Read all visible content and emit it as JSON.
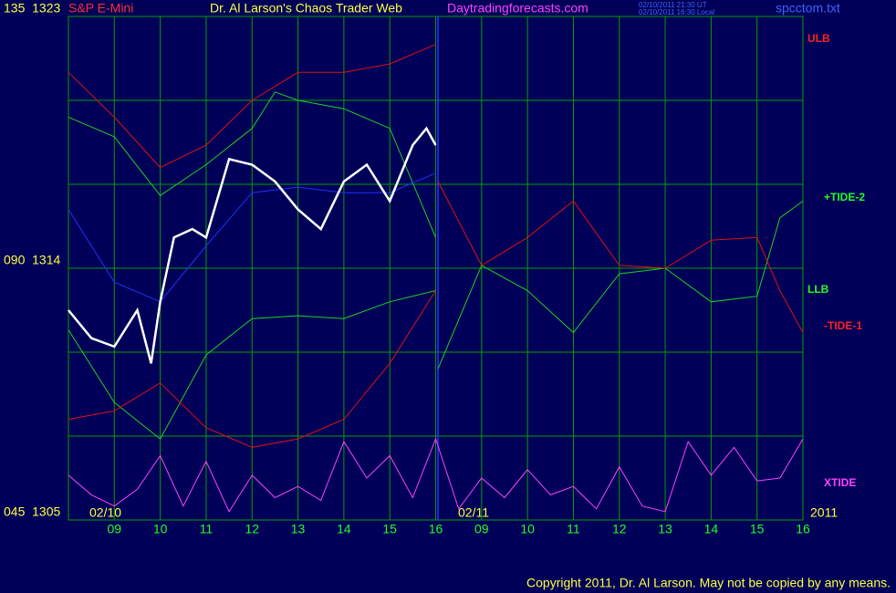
{
  "chart_data": {
    "type": "line",
    "symbol": "S&P E-Mini",
    "title": "Dr. Al Larson's Chaos Trader Web",
    "site": "Daytradingforecasts.com",
    "timestamp_ut": "02/10/2011 21:30 UT",
    "timestamp_local": "02/10/2011 16:30 Local",
    "file": "spcctom.txt",
    "copyright": "Copyright 2011, Dr. Al Larson. May not be copied by any means.",
    "date_labels": [
      "02/10",
      "02/11",
      "2011"
    ],
    "xlim": [
      0,
      16
    ],
    "xticks": [
      {
        "value": 1,
        "label": "09"
      },
      {
        "value": 2,
        "label": "10"
      },
      {
        "value": 3,
        "label": "11"
      },
      {
        "value": 4,
        "label": "12"
      },
      {
        "value": 5,
        "label": "13"
      },
      {
        "value": 6,
        "label": "14"
      },
      {
        "value": 7,
        "label": "15"
      },
      {
        "value": 8,
        "label": "16"
      },
      {
        "value": 9,
        "label": "09"
      },
      {
        "value": 10,
        "label": "10"
      },
      {
        "value": 11,
        "label": "11"
      },
      {
        "value": 12,
        "label": "12"
      },
      {
        "value": 13,
        "label": "13"
      },
      {
        "value": 14,
        "label": "14"
      },
      {
        "value": 15,
        "label": "15"
      },
      {
        "value": 16,
        "label": "16"
      }
    ],
    "ylim": [
      1305,
      1323
    ],
    "yticks": [
      {
        "value": 1323,
        "label": "135  1323"
      },
      {
        "value": 1314,
        "label": "090  1314"
      },
      {
        "value": 1305,
        "label": "045  1305"
      }
    ],
    "ygrid": [
      1305,
      1308,
      1311,
      1314,
      1317,
      1320,
      1323
    ],
    "now_x": 8.05,
    "annotations": [
      {
        "text": "ULB",
        "color": "#ff2020"
      },
      {
        "text": "+TIDE-2",
        "color": "#20ff20"
      },
      {
        "text": "LLB",
        "color": "#20ff20"
      },
      {
        "text": "-TIDE-1",
        "color": "#ff2020"
      },
      {
        "text": "XTIDE",
        "color": "#ff40ff"
      }
    ],
    "series": [
      {
        "color": "#e01010",
        "x": [
          0,
          1,
          2,
          3,
          4,
          5,
          6,
          7,
          8
        ],
        "values": [
          1321,
          1319.4,
          1317.6,
          1318.4,
          1320,
          1321,
          1321,
          1321.3,
          1322
        ]
      },
      {
        "color": "#20d020",
        "x": [
          0,
          1,
          2,
          3,
          4,
          4.5,
          5,
          6,
          7,
          8
        ],
        "values": [
          1319.4,
          1318.7,
          1316.6,
          1317.7,
          1319,
          1320.3,
          1320,
          1319.7,
          1319,
          1315.1
        ]
      },
      {
        "color": "#20d020",
        "x": [
          0,
          1,
          2,
          3,
          4,
          5,
          6,
          7,
          8
        ],
        "values": [
          1311.8,
          1309.2,
          1307.9,
          1310.9,
          1312.2,
          1312.3,
          1312.2,
          1312.8,
          1313.2
        ]
      },
      {
        "color": "#e01010",
        "x": [
          0,
          1,
          2,
          3,
          4,
          5,
          6,
          7,
          8
        ],
        "values": [
          1308.6,
          1308.9,
          1309.9,
          1308.3,
          1307.6,
          1307.9,
          1308.6,
          1310.6,
          1313.2
        ]
      },
      {
        "color": "#2030ff",
        "x": [
          0,
          1,
          2,
          3,
          4,
          5,
          6,
          7,
          8
        ],
        "values": [
          1316.1,
          1313.5,
          1312.8,
          1314.8,
          1316.7,
          1316.9,
          1316.7,
          1316.7,
          1317.4
        ]
      },
      {
        "color": "#20d020",
        "x": [
          8.05,
          9,
          10,
          11,
          12,
          13,
          14,
          15,
          15.5,
          16
        ],
        "values": [
          1310.4,
          1314.1,
          1313.2,
          1311.7,
          1313.8,
          1314,
          1312.8,
          1313,
          1315.8,
          1316.4
        ]
      },
      {
        "color": "#e01010",
        "x": [
          8.05,
          9,
          10,
          11,
          12,
          13,
          14,
          15,
          15.5,
          16
        ],
        "values": [
          1317.1,
          1314.1,
          1315.1,
          1316.4,
          1314.1,
          1314,
          1315,
          1315.1,
          1313.2,
          1311.7
        ]
      },
      {
        "color": "#ffffff",
        "x": [
          0,
          0.5,
          1,
          1.5,
          1.8,
          2,
          2.3,
          2.7,
          3,
          3.5,
          4,
          4.5,
          5,
          5.5,
          6,
          6.5,
          7,
          7.5,
          7.8,
          8
        ],
        "values": [
          1312.5,
          1311.5,
          1311.2,
          1312.5,
          1310.6,
          1312.8,
          1315.1,
          1315.4,
          1315.1,
          1317.9,
          1317.7,
          1317.1,
          1316.1,
          1315.4,
          1317.1,
          1317.7,
          1316.4,
          1318.4,
          1319,
          1318.4
        ]
      },
      {
        "color": "#ff40ff",
        "x": [
          0,
          0.5,
          1,
          1.5,
          2,
          2.5,
          3,
          3.5,
          4,
          4.5,
          5,
          5.5,
          6,
          6.5,
          7,
          7.5,
          8,
          8.5,
          9,
          9.5,
          10,
          10.5,
          11,
          11.5,
          12,
          12.5,
          13,
          13.5,
          14,
          14.5,
          15,
          15.5,
          16
        ],
        "values": [
          1306.6,
          1305.9,
          1305.5,
          1306.1,
          1307.3,
          1305.5,
          1307.1,
          1305.3,
          1306.6,
          1305.8,
          1306.2,
          1305.7,
          1307.8,
          1306.5,
          1307.3,
          1305.8,
          1307.9,
          1305.4,
          1306.5,
          1305.8,
          1306.8,
          1305.9,
          1306.2,
          1305.4,
          1306.9,
          1305.5,
          1305.3,
          1307.8,
          1306.6,
          1307.6,
          1306.4,
          1306.5,
          1307.9
        ]
      }
    ]
  }
}
